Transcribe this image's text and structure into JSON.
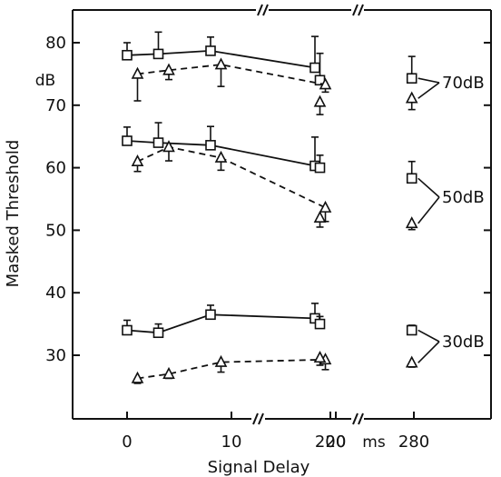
{
  "chart_data": {
    "type": "line",
    "title": "",
    "xlabel": "Signal Delay",
    "ylabel": "Masked Threshold",
    "y_unit_label": "dB",
    "x_unit_label": "ms",
    "ylim": [
      20,
      85
    ],
    "y_ticks": [
      30,
      40,
      50,
      60,
      70,
      80
    ],
    "x_tick_labels": [
      "0",
      "10",
      "20",
      "200",
      "280"
    ],
    "broken_x_axis": true,
    "grid": false,
    "legend": "none",
    "level_labels": [
      "70dB",
      "50dB",
      "30dB"
    ],
    "series": [
      {
        "level": "70dB",
        "marker": "square",
        "linestyle": "solid",
        "points": [
          {
            "x": 0,
            "y": 78,
            "err": 2
          },
          {
            "x": 3,
            "y": 78.2,
            "err": 3.5
          },
          {
            "x": 8,
            "y": 78.7,
            "err": 2.2
          },
          {
            "x": 18,
            "y": 76,
            "err": 5
          },
          {
            "x": 190,
            "y": 74,
            "err": 4.3,
            "connected": false
          },
          {
            "x": 278,
            "y": 74.3,
            "err": 3.5,
            "connected": false
          }
        ]
      },
      {
        "level": "70dB",
        "marker": "triangle",
        "linestyle": "dashed",
        "points": [
          {
            "x": 1,
            "y": 75,
            "err": 4.3
          },
          {
            "x": 4,
            "y": 75.6,
            "err": 1.5
          },
          {
            "x": 9,
            "y": 76.5,
            "err": 3.5
          },
          {
            "x": 19,
            "y": 73.3,
            "err": 1.2
          },
          {
            "x": 190,
            "y": 70.5,
            "err": 2,
            "connected": false
          },
          {
            "x": 278,
            "y": 71.1,
            "err": 1.8,
            "connected": false
          }
        ]
      },
      {
        "level": "50dB",
        "marker": "square",
        "linestyle": "solid",
        "points": [
          {
            "x": 0,
            "y": 64.3,
            "err": 2.2
          },
          {
            "x": 3,
            "y": 64,
            "err": 3.2
          },
          {
            "x": 8,
            "y": 63.6,
            "err": 3
          },
          {
            "x": 18,
            "y": 60.3,
            "err": 4.6
          },
          {
            "x": 190,
            "y": 60,
            "err": 2,
            "connected": false
          },
          {
            "x": 278,
            "y": 58.3,
            "err": 2.7,
            "connected": false
          }
        ]
      },
      {
        "level": "50dB",
        "marker": "triangle",
        "linestyle": "dashed",
        "points": [
          {
            "x": 1,
            "y": 61,
            "err": 1.6
          },
          {
            "x": 4,
            "y": 63.3,
            "err": 2.2
          },
          {
            "x": 9,
            "y": 61.6,
            "err": 2
          },
          {
            "x": 19,
            "y": 53.6,
            "err": 2.2
          },
          {
            "x": 190,
            "y": 52,
            "err": 1.5,
            "connected": false
          },
          {
            "x": 278,
            "y": 51.1,
            "err": 1,
            "connected": false
          }
        ]
      },
      {
        "level": "30dB",
        "marker": "square",
        "linestyle": "solid",
        "points": [
          {
            "x": 0,
            "y": 34,
            "err": 1.6
          },
          {
            "x": 3,
            "y": 33.6,
            "err": 1.4
          },
          {
            "x": 8,
            "y": 36.5,
            "err": 1.5
          },
          {
            "x": 18,
            "y": 35.9,
            "err": 2.4
          },
          {
            "x": 190,
            "y": 35,
            "err": 1.2,
            "connected": false
          },
          {
            "x": 278,
            "y": 34,
            "err": 0.8,
            "connected": false
          }
        ]
      },
      {
        "level": "30dB",
        "marker": "triangle",
        "linestyle": "dashed",
        "points": [
          {
            "x": 1,
            "y": 26.3,
            "err": 0.8
          },
          {
            "x": 4,
            "y": 27,
            "err": 0.7
          },
          {
            "x": 9,
            "y": 28.9,
            "err": 1.6
          },
          {
            "x": 19,
            "y": 29.3,
            "err": 1.6
          },
          {
            "x": 190,
            "y": 29.6,
            "err": 1.2,
            "connected": false
          },
          {
            "x": 278,
            "y": 28.8,
            "err": 0.7,
            "connected": false
          }
        ]
      }
    ]
  }
}
